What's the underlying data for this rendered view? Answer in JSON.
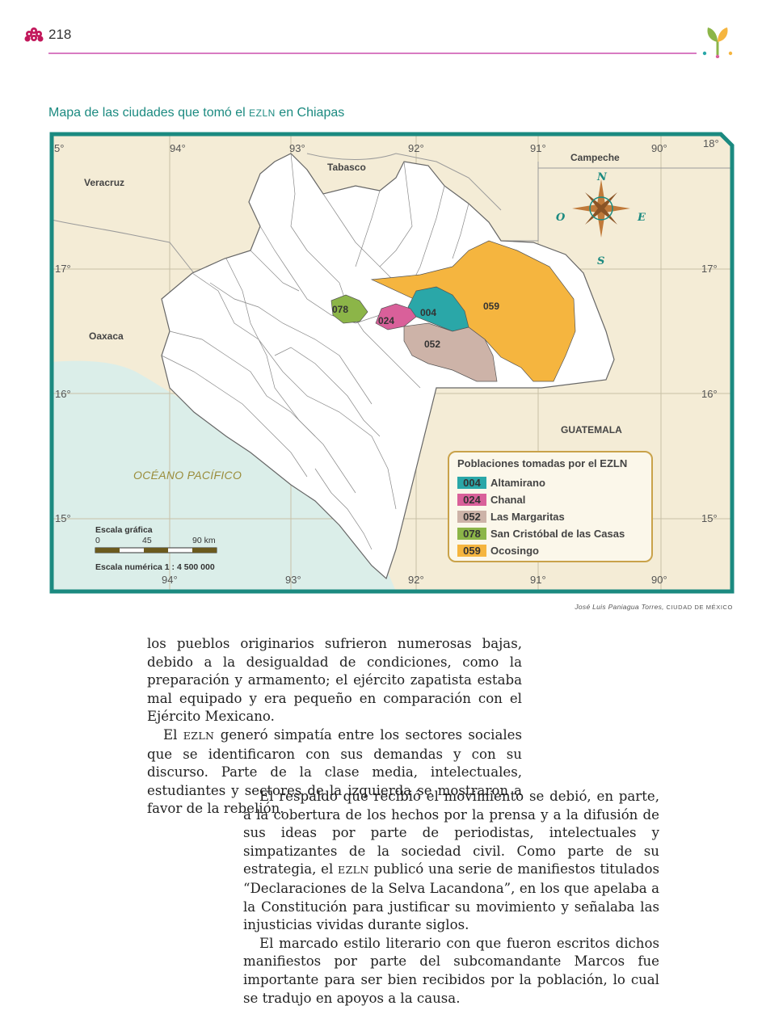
{
  "header": {
    "page_number": "218"
  },
  "figure": {
    "title_prefix": "Mapa de las ciudades que tomó el ",
    "title_abbr": "EZLN",
    "title_suffix": " en Chiapas",
    "top_coords": [
      "5°",
      "94°",
      "93°",
      "92°",
      "91°",
      "90°",
      "18°"
    ],
    "bottom_coords": [
      "94°",
      "93°",
      "92°",
      "91°",
      "90°"
    ],
    "left_coords": [
      "17°",
      "16°",
      "15°"
    ],
    "right_coords": [
      "17°",
      "16°",
      "15°"
    ],
    "regions": {
      "veracruz": "Veracruz",
      "tabasco": "Tabasco",
      "campeche": "Campeche",
      "oaxaca": "Oaxaca",
      "guatemala": "GUATEMALA",
      "ocean": "OCÉANO PACÍFICO"
    },
    "compass": {
      "n": "N",
      "s": "S",
      "e": "E",
      "o": "O"
    },
    "map_codes": [
      "078",
      "024",
      "004",
      "059",
      "052"
    ],
    "legend": {
      "title": "Poblaciones tomadas por el EZLN",
      "items": [
        {
          "code": "004",
          "name": "Altamirano",
          "color": "#2aa7a8"
        },
        {
          "code": "024",
          "name": "Chanal",
          "color": "#d9609a"
        },
        {
          "code": "052",
          "name": "Las Margaritas",
          "color": "#cdb3a8"
        },
        {
          "code": "078",
          "name": "San Cristóbal de las Casas",
          "color": "#8cb548"
        },
        {
          "code": "059",
          "name": "Ocosingo",
          "color": "#f5b53f"
        }
      ]
    },
    "scale": {
      "graphic_label": "Escala gráfica",
      "ticks": [
        "0",
        "45",
        "90 km"
      ],
      "numeric": "Escala numérica 1 : 4 500 000"
    },
    "credit_name": "José Luis Paniagua Torres, ",
    "credit_place": "CIUDAD DE MÉXICO"
  },
  "body": {
    "col1_p1": "los pueblos originarios sufrieron numerosas bajas, debido a la desigualdad de condiciones, como la preparación y armamento; el ejército zapatista estaba mal equipado y era pequeño en comparación con el Ejército Mexicano.",
    "col1_p2_a": "El ",
    "col1_p2_abbr": "EZLN",
    "col1_p2_b": " generó simpatía entre los sectores sociales que se identificaron con sus demandas y con su discurso. Parte de la clase media, intelectuales, estudiantes y sectores de la izquierda se mostraron a favor de la rebelión.",
    "col2_p1_a": "El respaldo que recibió el movimiento se debió, en parte, a la cobertura de los hechos por la prensa y a la difusión de sus ideas por parte de periodistas, intelectuales y simpatizantes de la sociedad civil. Como parte de su estrategia, el ",
    "col2_p1_abbr": "EZLN",
    "col2_p1_b": " publicó una serie de manifiestos titulados “Declaraciones de la Selva Lacandona”, en los que apelaba a la Constitución para justificar su movimiento y señalaba las injusticias vividas durante siglos.",
    "col2_p2": "El marcado estilo literario con que fueron escritos dichos manifiestos por parte del subcomandante Marcos fue importante para ser bien recibidos por la población, lo cual se tradujo en apoyos a la causa."
  }
}
